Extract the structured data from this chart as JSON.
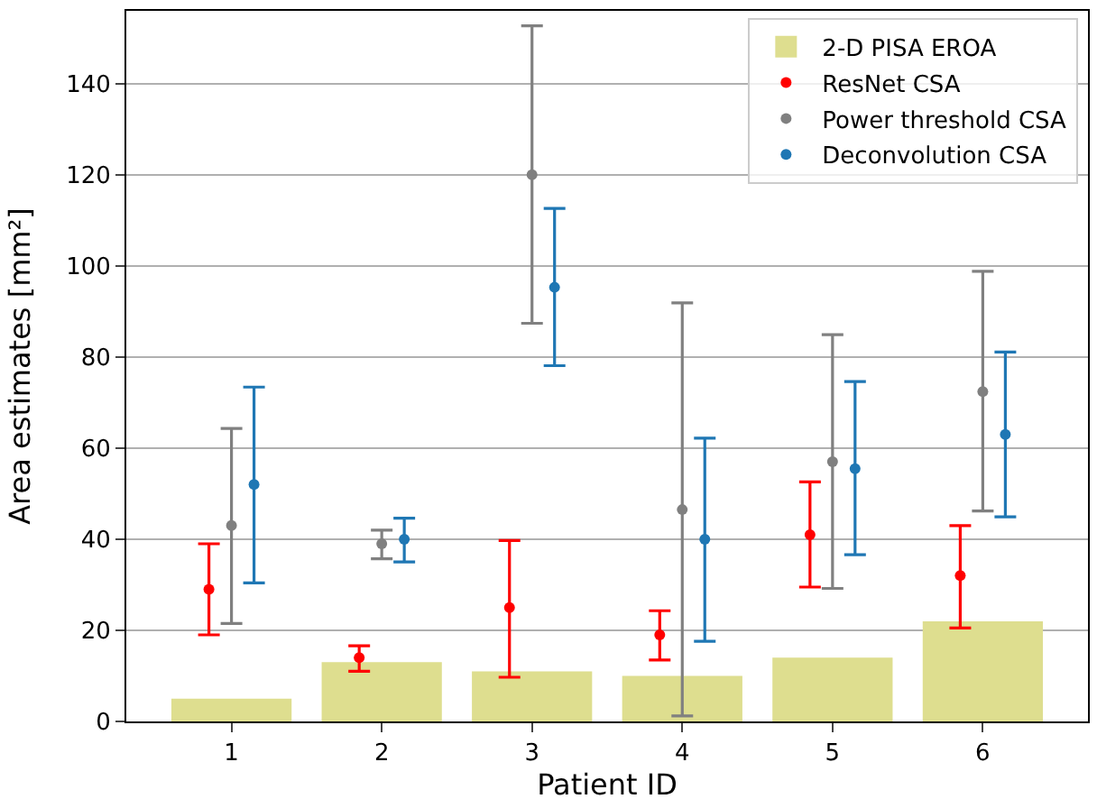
{
  "chart_data": {
    "type": "bar",
    "xlabel": "Patient ID",
    "ylabel": "Area estimates [mm²]",
    "categories": [
      "1",
      "2",
      "3",
      "4",
      "5",
      "6"
    ],
    "series": [
      {
        "name": "2-D PISA EROA",
        "color": "#dede8f",
        "values": [
          5,
          13,
          11,
          10,
          14,
          22
        ]
      },
      {
        "name": "ResNet CSA",
        "type": "scatter",
        "color": "#ff0000",
        "values": [
          29,
          14,
          25,
          19,
          41,
          32
        ],
        "errors": [
          [
            19,
            39
          ],
          [
            11,
            16.6
          ],
          [
            9.7,
            39.7
          ],
          [
            13.5,
            24.3
          ],
          [
            29.5,
            52.6
          ],
          [
            20.5,
            43
          ]
        ]
      },
      {
        "name": "Power threshold CSA",
        "type": "scatter",
        "color": "#808080",
        "values": [
          43,
          39,
          120,
          46.5,
          57,
          72.4
        ],
        "errors": [
          [
            21.5,
            64.3
          ],
          [
            35.7,
            42
          ],
          [
            87.4,
            152.7
          ],
          [
            1.2,
            91.9
          ],
          [
            29.2,
            84.9
          ],
          [
            46.2,
            98.8
          ]
        ]
      },
      {
        "name": "Deconvolution CSA",
        "type": "scatter",
        "color": "#1f77b4",
        "values": [
          52,
          40,
          95.3,
          40,
          55.5,
          63
        ],
        "errors": [
          [
            30.4,
            73.4
          ],
          [
            35,
            44.6
          ],
          [
            78.1,
            112.6
          ],
          [
            17.6,
            62.2
          ],
          [
            36.6,
            74.6
          ],
          [
            44.9,
            81.1
          ]
        ]
      }
    ],
    "ylim": [
      0,
      156
    ],
    "yticks": [
      0,
      20,
      40,
      60,
      80,
      100,
      120,
      140
    ],
    "grid": "y",
    "legend": "top right",
    "marker": "circle"
  }
}
